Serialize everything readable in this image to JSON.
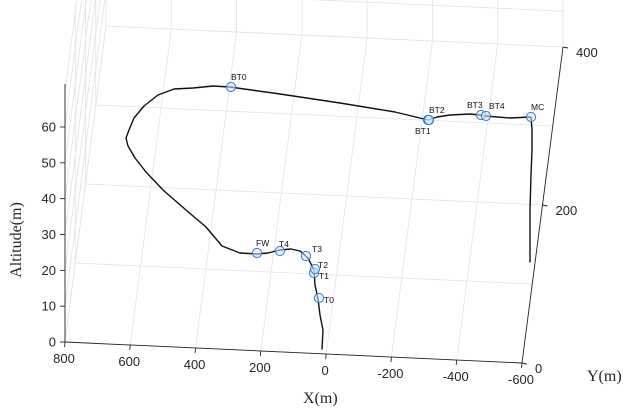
{
  "chart_data": {
    "type": "line3d",
    "xlabel": "X(m)",
    "ylabel": "Y(m)",
    "zlabel": "Altitude(m)",
    "xticks": [
      "800",
      "600",
      "400",
      "200",
      "0",
      "-200",
      "-400",
      "-600"
    ],
    "yticks": [
      "0",
      "200",
      "400"
    ],
    "zticks": [
      "0",
      "10",
      "20",
      "30",
      "40",
      "50",
      "60"
    ],
    "grid": true,
    "waypoints": [
      {
        "name": "T0"
      },
      {
        "name": "T1"
      },
      {
        "name": "T2"
      },
      {
        "name": "T3"
      },
      {
        "name": "T4"
      },
      {
        "name": "FW"
      },
      {
        "name": "BT0"
      },
      {
        "name": "BT1"
      },
      {
        "name": "BT2"
      },
      {
        "name": "BT3"
      },
      {
        "name": "BT4"
      },
      {
        "name": "MC"
      }
    ]
  }
}
